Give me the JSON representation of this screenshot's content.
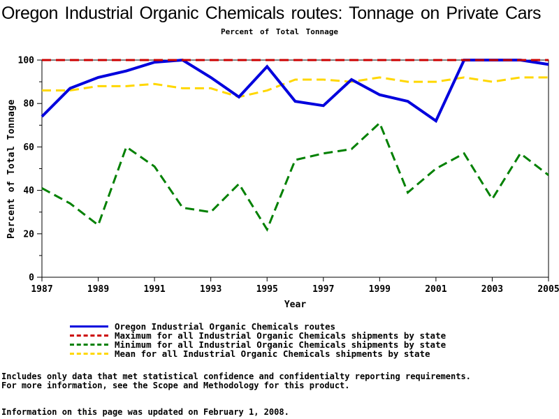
{
  "chart_data": {
    "type": "line",
    "title": "Oregon Industrial Organic Chemicals routes: Tonnage on Private Cars",
    "subtitle": "Percent of Total Tonnage",
    "xlabel": "Year",
    "ylabel": "Percent of Total Tonnage",
    "x": [
      1987,
      1988,
      1989,
      1990,
      1991,
      1992,
      1993,
      1994,
      1995,
      1996,
      1997,
      1998,
      1999,
      2000,
      2001,
      2002,
      2003,
      2004,
      2005
    ],
    "x_tick_labels": [
      1987,
      1989,
      1991,
      1993,
      1995,
      1997,
      1999,
      2001,
      2003,
      2005
    ],
    "ylim": [
      0,
      100
    ],
    "y_ticks": [
      0,
      20,
      40,
      60,
      80,
      100
    ],
    "y_minor_step": 10,
    "grid": false,
    "legend_position": "bottom",
    "series": [
      {
        "name": "Oregon Industrial Organic Chemicals routes",
        "color": "#0000dd",
        "style": "solid",
        "values": [
          74,
          87,
          92,
          95,
          99,
          100,
          92,
          83,
          97,
          81,
          79,
          91,
          84,
          81,
          72,
          100,
          100,
          100,
          98
        ]
      },
      {
        "name": "Maximum for all Industrial Organic Chemicals shipments by state",
        "color": "#cc0000",
        "style": "dashed",
        "values": [
          100,
          100,
          100,
          100,
          100,
          100,
          100,
          100,
          100,
          100,
          100,
          100,
          100,
          100,
          100,
          100,
          100,
          100,
          100
        ]
      },
      {
        "name": "Minimum for all Industrial Organic Chemicals shipments by state",
        "color": "#008000",
        "style": "dashed",
        "values": [
          41,
          34,
          24,
          60,
          51,
          32,
          30,
          43,
          22,
          54,
          57,
          59,
          71,
          39,
          50,
          57,
          36,
          57,
          47
        ]
      },
      {
        "name": "Mean for all Industrial Organic Chemicals shipments by state",
        "color": "#ffd700",
        "style": "dashed",
        "values": [
          86,
          86,
          88,
          88,
          89,
          87,
          87,
          83,
          86,
          91,
          91,
          90,
          92,
          90,
          90,
          92,
          90,
          92,
          92
        ]
      }
    ]
  },
  "footnotes": {
    "line1": "Includes only data that met statistical confidence and confidentialty reporting requirements.",
    "line2": "For more information, see the Scope and Methodology for this product.",
    "updated": "Information on this page was updated on February 1, 2008."
  }
}
